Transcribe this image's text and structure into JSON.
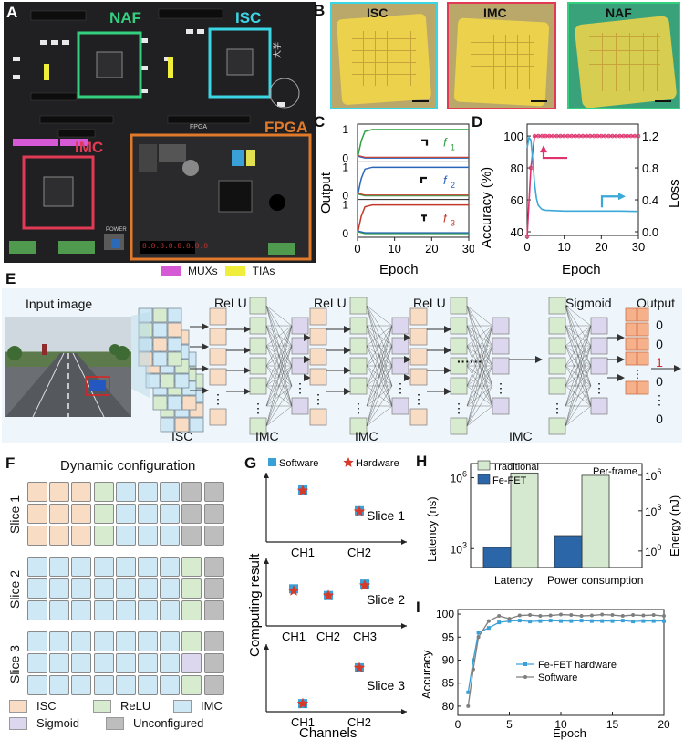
{
  "panel_letters": {
    "A": "A",
    "B": "B",
    "C": "C",
    "D": "D",
    "E": "E",
    "F": "F",
    "G": "G",
    "H": "H",
    "I": "I"
  },
  "panelA": {
    "labels": {
      "naf": "NAF",
      "isc": "ISC",
      "imc": "IMC",
      "fpga": "FPGA"
    },
    "legend": [
      {
        "label": "MUXs",
        "color": "#d65ad6"
      },
      {
        "label": "TIAs",
        "color": "#f0ee3a"
      }
    ],
    "board_text": {
      "fpga_silk": "FPGA",
      "power": "POWER",
      "digits": "8.8.8.8.8.8.8.8"
    }
  },
  "panelB": {
    "labels": [
      "ISC",
      "IMC",
      "NAF"
    ]
  },
  "panelC": {
    "chart_data": {
      "type": "line",
      "ylabel": "Output",
      "xlabel": "Epoch",
      "xlim": [
        0,
        30
      ],
      "x_ticks": [
        "0",
        "10",
        "20",
        "30"
      ],
      "y_ticks": [
        "0",
        "1"
      ],
      "series": [
        {
          "name": "f",
          "sub": "1",
          "color": "#2ea043",
          "high": "f1"
        },
        {
          "name": "f",
          "sub": "2",
          "color": "#2b66b8",
          "high": "f2"
        },
        {
          "name": "f",
          "sub": "3",
          "color": "#c0392b",
          "high": "f3"
        }
      ]
    }
  },
  "panelD": {
    "chart_data": {
      "type": "line",
      "xlabel": "Epoch",
      "ylabel_left": "Accuracy (%)",
      "ylabel_right": "Loss",
      "xlim": [
        0,
        30
      ],
      "ylim_left": [
        40,
        100
      ],
      "ylim_right": [
        0,
        1.2
      ],
      "x_ticks": [
        "0",
        "10",
        "20",
        "30"
      ],
      "y_left_ticks": [
        "40",
        "60",
        "80",
        "100"
      ],
      "y_right_ticks": [
        "0.0",
        "0.4",
        "0.8",
        "1.2"
      ],
      "accuracy": {
        "x": [
          0,
          1,
          2,
          3,
          4,
          5,
          6,
          7,
          8,
          9,
          10,
          11,
          12,
          13,
          14,
          15,
          16,
          17,
          18,
          19,
          20,
          21,
          22,
          23,
          24,
          25,
          26,
          27,
          28,
          29,
          30
        ],
        "y": [
          37,
          80,
          100,
          100,
          100,
          100,
          100,
          100,
          100,
          100,
          100,
          100,
          100,
          100,
          100,
          100,
          100,
          100,
          100,
          100,
          100,
          100,
          100,
          100,
          100,
          100,
          100,
          100,
          100,
          100,
          100
        ],
        "color": "#e0326e"
      },
      "loss": {
        "x": [
          0,
          0.5,
          1,
          1.5,
          2,
          2.5,
          3,
          4,
          5,
          7,
          10,
          15,
          20,
          25,
          30
        ],
        "y": [
          1.05,
          1.18,
          1.15,
          0.9,
          0.6,
          0.42,
          0.33,
          0.28,
          0.27,
          0.265,
          0.26,
          0.26,
          0.26,
          0.26,
          0.255
        ],
        "color": "#3aa8d8"
      }
    }
  },
  "panelE": {
    "input_label": "Input image",
    "relu": "ReLU",
    "sigmoid": "Sigmoid",
    "output_label": "Output",
    "isc": "ISC",
    "imc": "IMC",
    "outputs": [
      "0",
      "0",
      "1",
      "0",
      "⋮",
      "0"
    ],
    "dots": "······"
  },
  "panelF": {
    "title": "Dynamic configuration",
    "slices": [
      "Slice 1",
      "Slice 2",
      "Slice 3"
    ],
    "legend": [
      {
        "label": "ISC",
        "color": "#f9dcc4"
      },
      {
        "label": "ReLU",
        "color": "#d7ebcf"
      },
      {
        "label": "IMC",
        "color": "#cfe8f6"
      },
      {
        "label": "Sigmoid",
        "color": "#dcd6ee"
      },
      {
        "label": "Unconfigured",
        "color": "#bdbdbd"
      }
    ],
    "grids": [
      [
        [
          "ISC",
          "ISC",
          "ISC",
          "ReLU",
          "IMC",
          "IMC",
          "IMC",
          "Unconfigured",
          "Unconfigured"
        ],
        [
          "ISC",
          "ISC",
          "ISC",
          "ReLU",
          "IMC",
          "IMC",
          "IMC",
          "Unconfigured",
          "Unconfigured"
        ],
        [
          "ISC",
          "ISC",
          "ISC",
          "ReLU",
          "IMC",
          "IMC",
          "IMC",
          "Unconfigured",
          "Unconfigured"
        ]
      ],
      [
        [
          "IMC",
          "IMC",
          "IMC",
          "IMC",
          "IMC",
          "IMC",
          "IMC",
          "ReLU",
          "Unconfigured"
        ],
        [
          "IMC",
          "IMC",
          "IMC",
          "IMC",
          "IMC",
          "IMC",
          "IMC",
          "ReLU",
          "Unconfigured"
        ],
        [
          "IMC",
          "IMC",
          "IMC",
          "IMC",
          "IMC",
          "IMC",
          "IMC",
          "ReLU",
          "Unconfigured"
        ]
      ],
      [
        [
          "IMC",
          "IMC",
          "IMC",
          "IMC",
          "IMC",
          "IMC",
          "IMC",
          "ReLU",
          "Unconfigured"
        ],
        [
          "IMC",
          "IMC",
          "IMC",
          "IMC",
          "IMC",
          "IMC",
          "IMC",
          "Sigmoid",
          "Unconfigured"
        ],
        [
          "IMC",
          "IMC",
          "IMC",
          "IMC",
          "IMC",
          "IMC",
          "IMC",
          "ReLU",
          "Unconfigured"
        ]
      ]
    ]
  },
  "panelG": {
    "chart_data": {
      "type": "scatter",
      "ylabel": "Computing result",
      "xlabel": "Channels",
      "legend": [
        {
          "label": "Software",
          "color": "#3aa0d8"
        },
        {
          "label": "Hardware",
          "color": "#d63a2a"
        }
      ],
      "slices": [
        {
          "name": "Slice 1",
          "channels": [
            "CH1",
            "CH2"
          ],
          "software": [
            0.75,
            0.45
          ],
          "hardware": [
            0.74,
            0.44
          ]
        },
        {
          "name": "Slice 2",
          "channels": [
            "CH1",
            "CH2",
            "CH3"
          ],
          "software": [
            0.55,
            0.45,
            0.62
          ],
          "hardware": [
            0.52,
            0.45,
            0.6
          ]
        },
        {
          "name": "Slice 3",
          "channels": [
            "CH1",
            "CH2"
          ],
          "software": [
            0.12,
            0.65
          ],
          "hardware": [
            0.12,
            0.65
          ]
        }
      ]
    }
  },
  "panelH": {
    "chart_data": {
      "type": "bar",
      "categories": [
        "Latency",
        "Power consumption"
      ],
      "ylabel_left": "Latency (ns)",
      "ylabel_right": "Energy (nJ)",
      "annotation": "Per-frame",
      "series": [
        {
          "name": "Traditional",
          "color": "#d5e8d0",
          "log_values": [
            6.2,
            6.1
          ]
        },
        {
          "name": "Fe-FET",
          "color": "#2b66a8",
          "log_values": [
            3.05,
            3.55
          ]
        }
      ],
      "left_ticks": [
        "10^3",
        "10^6"
      ],
      "right_ticks": [
        "10^0",
        "10^3",
        "10^6"
      ]
    }
  },
  "panelI": {
    "chart_data": {
      "type": "line",
      "xlabel": "Epoch",
      "ylabel": "Accuracy",
      "xlim": [
        0,
        20
      ],
      "ylim": [
        78,
        101
      ],
      "x_ticks": [
        "0",
        "5",
        "10",
        "15",
        "20"
      ],
      "y_ticks": [
        "80",
        "85",
        "90",
        "95",
        "100"
      ],
      "series": [
        {
          "name": "Fe-FET hardware",
          "color": "#3aa0d8",
          "x": [
            1,
            1.5,
            2,
            3,
            4,
            5,
            6,
            7,
            8,
            9,
            10,
            11,
            12,
            13,
            14,
            15,
            16,
            17,
            18,
            19,
            20
          ],
          "y": [
            83,
            90,
            96,
            97,
            98.2,
            98.5,
            98.6,
            98.4,
            98.5,
            98.6,
            98.5,
            98.5,
            98.6,
            98.5,
            98.5,
            98.5,
            98.6,
            98.4,
            98.5,
            98.5,
            98.5
          ]
        },
        {
          "name": "Software",
          "color": "#7f7f7f",
          "x": [
            1,
            1.5,
            2,
            3,
            4,
            5,
            6,
            7,
            8,
            9,
            10,
            11,
            12,
            13,
            14,
            15,
            16,
            17,
            18,
            19,
            20
          ],
          "y": [
            80,
            88,
            95,
            98.5,
            99.6,
            99.0,
            99.7,
            99.8,
            99.6,
            99.7,
            99.9,
            99.8,
            99.6,
            99.7,
            99.9,
            99.8,
            99.6,
            99.8,
            99.7,
            99.8,
            99.6
          ]
        }
      ]
    }
  }
}
